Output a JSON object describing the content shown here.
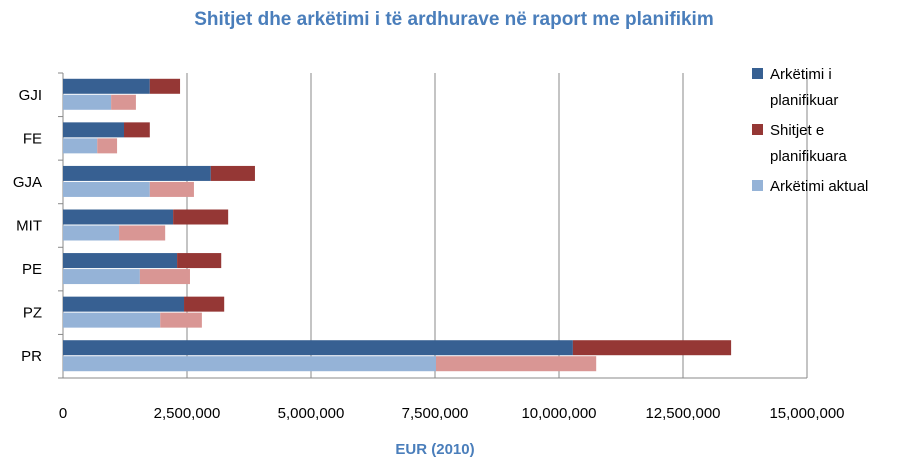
{
  "chart_data": {
    "type": "bar",
    "orientation": "horizontal",
    "title": "Shitjet dhe arkëtimi i të ardhurave në raport me planifikim",
    "x_label": "EUR (2010)",
    "categories": [
      "GJI",
      "FE",
      "GJA",
      "MIT",
      "PE",
      "PZ",
      "PR"
    ],
    "series": [
      {
        "name": "Arkëtimi i planifikuar",
        "color": "#376092",
        "values": [
          1750000,
          1230000,
          2980000,
          2220000,
          2300000,
          2440000,
          10280000
        ]
      },
      {
        "name": "Shitjet e planifikuara",
        "color": "#953735",
        "values": [
          610000,
          520000,
          890000,
          1110000,
          890000,
          810000,
          3190000
        ]
      },
      {
        "name": "Arkëtimi aktual",
        "color": "#95b3d7",
        "values": [
          970000,
          690000,
          1750000,
          1130000,
          1550000,
          1960000,
          7520000
        ]
      },
      {
        "name": null,
        "color": "#d99694",
        "values": [
          500000,
          400000,
          890000,
          930000,
          1010000,
          840000,
          3230000
        ]
      }
    ],
    "xlim": [
      0,
      15000000
    ],
    "xticks": [
      0,
      {
        "value": 2500000,
        "label": "2,500,000"
      },
      {
        "value": 5000000,
        "label": "5,000,000"
      },
      {
        "value": 7500000,
        "label": "7,500,000"
      },
      {
        "value": 10000000,
        "label": "10,000,000"
      },
      {
        "value": 12500000,
        "label": "12,500,000"
      },
      {
        "value": 15000000,
        "label": "15,000,000"
      }
    ],
    "grid": true
  }
}
